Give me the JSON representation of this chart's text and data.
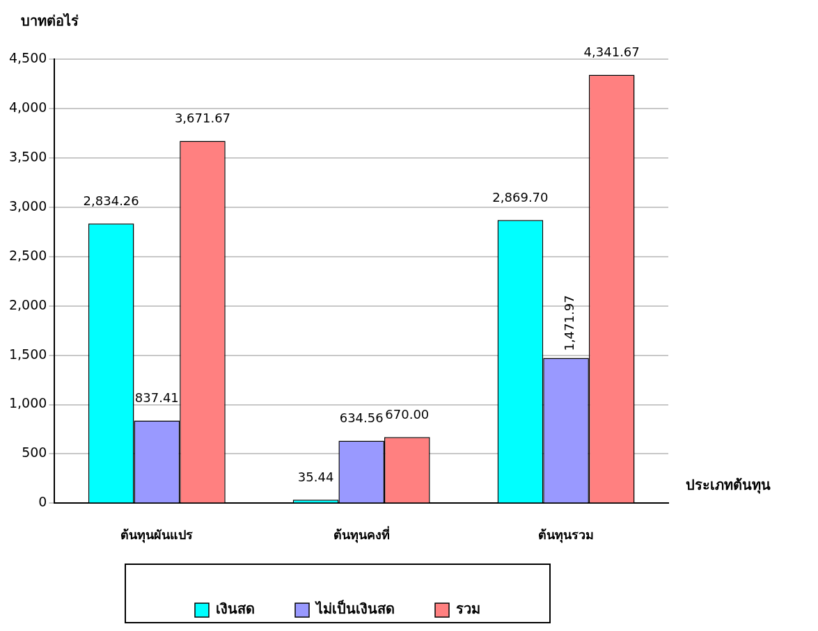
{
  "chart_data": {
    "type": "bar",
    "xlabel": "ประเภทต้นทุน",
    "ylabel": "บาทต่อไร่",
    "categories": [
      "ต้นทุนผันแปร",
      "ต้นทุนคงที่",
      "ต้นทุนรวม"
    ],
    "series": [
      {
        "name": "เงินสด",
        "color": "#00ffff",
        "values": [
          2834.26,
          35.44,
          2869.7
        ],
        "value_labels": [
          "2,834.26",
          "35.44",
          "2,869.70"
        ]
      },
      {
        "name": "ไม่เป็นเงินสด",
        "color": "#9999ff",
        "values": [
          837.41,
          634.56,
          1471.97
        ],
        "value_labels": [
          "837.41",
          "634.56",
          "1,471.97"
        ]
      },
      {
        "name": "รวม",
        "color": "#ff8080",
        "values": [
          3671.67,
          670.0,
          4341.67
        ],
        "value_labels": [
          "3,671.67",
          "670.00",
          "4,341.67"
        ]
      }
    ],
    "ylim": [
      0,
      4500
    ],
    "yticks": [
      0,
      {
        "value": 500,
        "label": "500"
      },
      {
        "value": 1000,
        "label": "1,000"
      },
      {
        "value": 1500,
        "label": "1,500"
      },
      {
        "value": 2000,
        "label": "2,000"
      },
      {
        "value": 2500,
        "label": "2,500"
      },
      {
        "value": 3000,
        "label": "3,000"
      },
      {
        "value": 3500,
        "label": "3,500"
      },
      {
        "value": 4000,
        "label": "4,000"
      },
      {
        "value": 4500,
        "label": "4,500"
      }
    ],
    "grid": "y",
    "legend": "bottom"
  }
}
